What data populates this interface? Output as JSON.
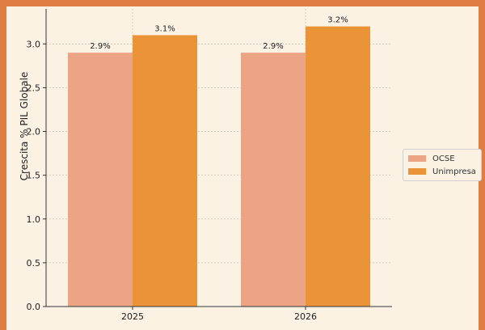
{
  "chart_data": {
    "type": "bar",
    "title": "",
    "xlabel": "",
    "ylabel": "Crescita % PIL Globale",
    "categories": [
      "2025",
      "2026"
    ],
    "series": [
      {
        "name": "OCSE",
        "values": [
          2.9,
          2.9
        ],
        "labels": [
          "2.9%",
          "2.9%"
        ],
        "color": "#eca584"
      },
      {
        "name": "Unimpresa",
        "values": [
          3.1,
          3.2
        ],
        "labels": [
          "3.1%",
          "3.2%"
        ],
        "color": "#eb9337"
      }
    ],
    "ylim": [
      0,
      3.4
    ],
    "yticks": [
      0,
      0.5,
      1.0,
      1.5,
      2.0,
      2.5,
      3.0
    ],
    "ytick_labels": [
      "0.0",
      "0.5",
      "1.0",
      "1.5",
      "2.0",
      "2.5",
      "3.0"
    ],
    "grid": true,
    "legend_position": "right"
  },
  "colors": {
    "frame": "#e07d43",
    "background": "#fbf2e4"
  }
}
